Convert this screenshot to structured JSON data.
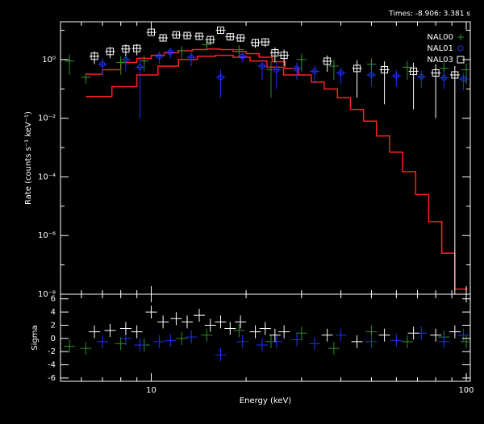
{
  "chart_data": [
    {
      "type": "spectrum",
      "title": "Times: -8.906: 3.381 s",
      "ylabel": "Rate (counts s⁻¹ keV⁻¹)",
      "xscale": "log",
      "yscale": "log",
      "xlim": [
        5.15,
        103
      ],
      "xticks": [
        10,
        100
      ],
      "xminor_ticks": [
        6,
        7,
        8,
        9,
        20,
        30,
        40,
        50,
        60,
        70,
        80,
        90
      ],
      "ylim": [
        1e-08,
        19.5
      ],
      "yticks": [
        {
          "value": 1,
          "label": "10⁰"
        },
        {
          "value": 0.01,
          "label": "10⁻²"
        },
        {
          "value": 0.0001,
          "label": "10⁻⁴"
        },
        {
          "value": 1e-06,
          "label": "10⁻⁶"
        },
        {
          "value": 1e-08,
          "label": "10⁻⁸"
        }
      ],
      "yminor_ticks": [
        10,
        0.1,
        0.001,
        1e-05,
        1e-07
      ],
      "legend": "top-right",
      "series": [
        {
          "name": "NAL00",
          "color": "#2e8b2e",
          "marker": "plus",
          "x": [
            5.5,
            6.2,
            8.0,
            9.5,
            12.5,
            15,
            19,
            24,
            30,
            38,
            50,
            65,
            85,
            100
          ],
          "values": [
            0.9,
            0.25,
            0.8,
            0.9,
            2.0,
            3.2,
            2.2,
            0.45,
            1.0,
            0.6,
            0.7,
            0.55,
            0.5,
            0.45
          ],
          "errors": [
            0.6,
            0.1,
            0.5,
            0.5,
            0.9,
            1.2,
            0.9,
            0.4,
            0.6,
            0.4,
            0.4,
            0.35,
            0.3,
            0.3
          ]
        },
        {
          "name": "NAL01",
          "color": "#1e32ff",
          "marker": "circle",
          "x": [
            7.0,
            8.3,
            9.2,
            10.6,
            11.5,
            13.4,
            16.6,
            19.5,
            22.5,
            25,
            29,
            33,
            40,
            50,
            60,
            72,
            85,
            98
          ],
          "values": [
            0.7,
            1.0,
            0.55,
            1.3,
            1.8,
            1.2,
            0.25,
            1.3,
            0.6,
            0.45,
            0.5,
            0.4,
            0.35,
            0.3,
            0.28,
            0.26,
            0.24,
            0.22
          ],
          "errors": [
            0.4,
            0.6,
            0.54,
            0.6,
            0.7,
            0.6,
            0.2,
            0.5,
            0.4,
            0.35,
            0.3,
            0.25,
            0.2,
            0.18,
            0.16,
            0.15,
            0.14,
            0.13
          ]
        },
        {
          "name": "NAL03",
          "color": "#ffffff",
          "marker": "square",
          "x": [
            6.6,
            7.4,
            8.3,
            9.0,
            10.0,
            10.9,
            12.0,
            13.0,
            14.2,
            15.4,
            16.6,
            17.8,
            19.2,
            21.4,
            23.0,
            24.7,
            26.4,
            36.2,
            45,
            55,
            68,
            80,
            92
          ],
          "values": [
            1.3,
            1.9,
            2.3,
            2.4,
            8.5,
            5.5,
            7.0,
            6.6,
            6.2,
            4.8,
            10,
            6.0,
            5.5,
            3.8,
            4.0,
            1.7,
            1.4,
            0.88,
            0.5,
            0.45,
            0.4,
            0.35,
            0.3
          ],
          "errors": [
            0.6,
            0.8,
            1.0,
            1.0,
            1.5,
            1.3,
            1.5,
            1.5,
            1.5,
            1.4,
            1.8,
            1.6,
            1.5,
            1.3,
            1.3,
            0.9,
            0.8,
            0.5,
            0.45,
            0.42,
            0.38,
            0.34,
            0.3
          ]
        }
      ],
      "models": [
        {
          "color": "#ff2020",
          "bins": [
            6.2,
            7.0,
            8.0,
            9.0,
            10.0,
            11.0,
            12.2,
            13.5,
            15.0,
            16.5,
            18.2,
            20.0,
            22.0,
            24.2,
            26.6,
            29.3,
            32.2,
            35.4,
            39.0,
            42.9,
            47.2,
            51.9,
            57.1,
            62.8,
            69.1,
            76.0,
            83.6,
            92.0,
            101.0
          ],
          "values": [
            0.32,
            0.45,
            0.8,
            1.1,
            1.4,
            1.7,
            2.0,
            2.2,
            2.3,
            2.2,
            1.9,
            1.6,
            1.2,
            0.85,
            0.5,
            0.3,
            0.17,
            0.1,
            0.05,
            0.02,
            0.008,
            0.0025,
            0.0007,
            0.00015,
            2.5e-05,
            3e-06,
            2.5e-07,
            1.5e-08
          ]
        },
        {
          "color": "#ff2020",
          "bins": [
            6.2,
            7.5,
            9.0,
            10.5,
            12.2,
            14.0,
            16.0,
            18.2,
            20.6,
            23.3,
            26.3,
            29.6
          ],
          "values": [
            0.055,
            0.12,
            0.3,
            0.6,
            1.0,
            1.3,
            1.4,
            1.2,
            0.9,
            0.55,
            0.3
          ]
        }
      ]
    },
    {
      "type": "residual",
      "xlabel": "Energy (keV)",
      "ylabel": "Sigma",
      "xscale": "log",
      "xlim": [
        5.15,
        103
      ],
      "xticks": [
        10,
        100
      ],
      "xminor_ticks": [
        6,
        7,
        8,
        9,
        20,
        30,
        40,
        50,
        60,
        70,
        80,
        90
      ],
      "ylim": [
        -6.5,
        6.7
      ],
      "yticks": [
        -6,
        -4,
        -2,
        0,
        2,
        4,
        6
      ],
      "series": [
        {
          "color": "#2e8b2e",
          "x": [
            5.5,
            6.2,
            8.0,
            9.5,
            12.5,
            15,
            19,
            24,
            30,
            38,
            50,
            65,
            85,
            100
          ],
          "values": [
            -1.2,
            -1.5,
            -0.8,
            -1,
            0,
            0.5,
            1.2,
            -0.5,
            0.8,
            -1.5,
            1,
            -0.5,
            0.2,
            -0.5
          ]
        },
        {
          "color": "#1e32ff",
          "x": [
            7.0,
            8.3,
            9.2,
            10.6,
            11.5,
            13.4,
            16.6,
            19.5,
            22.5,
            25,
            29,
            33,
            40,
            50,
            60,
            72,
            85,
            98
          ],
          "values": [
            -0.5,
            0,
            -1.0,
            -0.5,
            -0.3,
            0.2,
            -2.5,
            -0.5,
            -1,
            -0.5,
            -0.2,
            -0.8,
            0.5,
            -0.5,
            -0.3,
            0.8,
            -0.5,
            0.5
          ]
        },
        {
          "color": "#ffffff",
          "x": [
            6.6,
            7.4,
            8.3,
            9.0,
            10.0,
            10.9,
            12.0,
            13.0,
            14.2,
            15.4,
            16.6,
            17.8,
            19.2,
            21.4,
            23.0,
            24.7,
            26.4,
            36.2,
            45,
            55,
            68,
            80,
            92
          ],
          "values": [
            1.0,
            1.2,
            1.5,
            1.0,
            4.0,
            2.5,
            3.0,
            2.5,
            3.5,
            2.0,
            2.5,
            1.5,
            2.5,
            1.0,
            1.5,
            0.5,
            1.0,
            0.5,
            -0.5,
            0.5,
            0.8,
            0.5,
            1.0
          ]
        }
      ]
    }
  ]
}
